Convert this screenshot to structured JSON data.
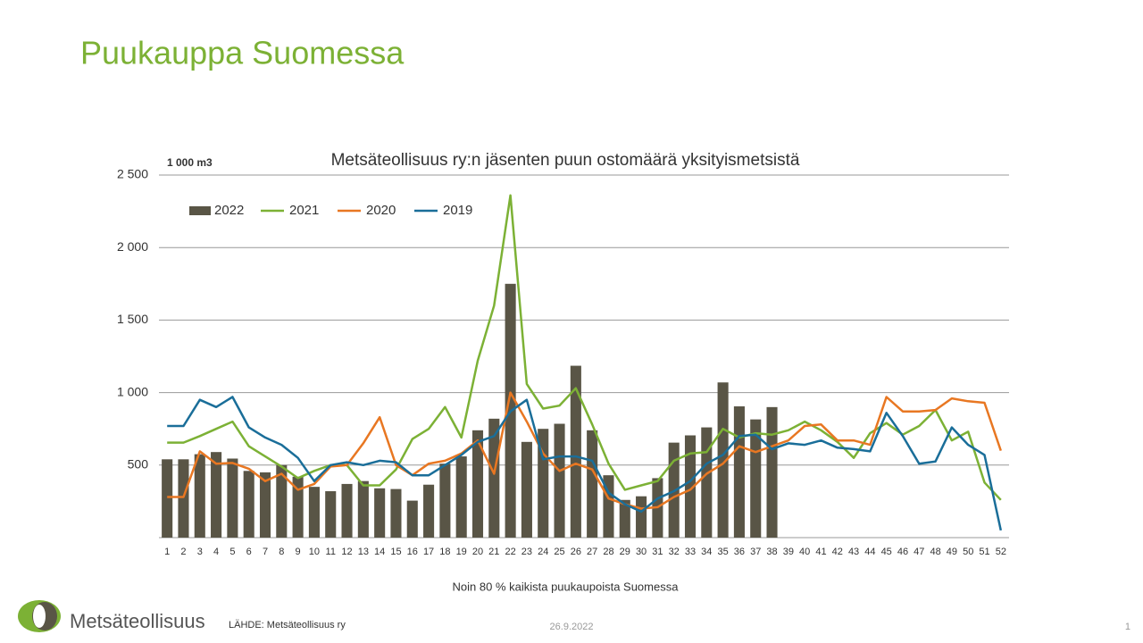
{
  "header": {
    "title": "Puukauppa Suomessa"
  },
  "chart_data": {
    "type": "bar_line",
    "title": "Metsäteollisuus ry:n jäsenten puun ostomäärä yksityismetsistä",
    "unit_label": "1 000 m3",
    "xlabel": "Noin 80 % kaikista puukaupoista Suomessa",
    "categories": [
      "1",
      "2",
      "3",
      "4",
      "5",
      "6",
      "7",
      "8",
      "9",
      "10",
      "11",
      "12",
      "13",
      "14",
      "15",
      "16",
      "17",
      "18",
      "19",
      "20",
      "21",
      "22",
      "23",
      "24",
      "25",
      "26",
      "27",
      "28",
      "29",
      "30",
      "31",
      "32",
      "33",
      "34",
      "35",
      "36",
      "37",
      "38",
      "39",
      "40",
      "41",
      "42",
      "43",
      "44",
      "45",
      "46",
      "47",
      "48",
      "49",
      "50",
      "51",
      "52"
    ],
    "ylim": [
      0,
      2500
    ],
    "yticks": [
      500,
      {
        "value": 1000,
        "label": "1 000"
      },
      {
        "value": 1500,
        "label": "1 500"
      },
      {
        "value": 2000,
        "label": "2 000"
      },
      {
        "value": 2500,
        "label": "2 500"
      }
    ],
    "grid": true,
    "legend": "top-left",
    "series": [
      {
        "name": "2022",
        "kind": "bar",
        "color": "#595546",
        "values": [
          540,
          540,
          575,
          590,
          545,
          460,
          450,
          500,
          420,
          350,
          320,
          370,
          390,
          340,
          335,
          255,
          365,
          510,
          560,
          740,
          820,
          1750,
          660,
          750,
          785,
          1185,
          740,
          430,
          260,
          285,
          410,
          655,
          705,
          760,
          1070,
          905,
          815,
          900,
          null,
          null,
          null,
          null,
          null,
          null,
          null,
          null,
          null,
          null,
          null,
          null,
          null,
          null
        ]
      },
      {
        "name": "2021",
        "kind": "line",
        "color": "#7cb135",
        "values": [
          655,
          655,
          700,
          750,
          800,
          630,
          560,
          490,
          410,
          460,
          500,
          500,
          360,
          360,
          470,
          680,
          750,
          900,
          690,
          1220,
          1600,
          2360,
          1060,
          890,
          910,
          1030,
          780,
          510,
          330,
          360,
          390,
          530,
          580,
          590,
          750,
          690,
          720,
          710,
          740,
          800,
          740,
          660,
          550,
          720,
          790,
          710,
          770,
          880,
          670,
          730,
          380,
          260
        ]
      },
      {
        "name": "2020",
        "kind": "line",
        "color": "#e87722",
        "values": [
          280,
          280,
          595,
          510,
          515,
          475,
          390,
          440,
          330,
          370,
          490,
          500,
          650,
          830,
          500,
          430,
          510,
          530,
          580,
          670,
          440,
          1000,
          800,
          580,
          460,
          510,
          470,
          270,
          230,
          200,
          210,
          280,
          330,
          440,
          510,
          630,
          590,
          630,
          670,
          770,
          780,
          670,
          670,
          640,
          970,
          870,
          870,
          880,
          960,
          940,
          930,
          600
        ]
      },
      {
        "name": "2019",
        "kind": "line",
        "color": "#1a6e99",
        "values": [
          770,
          770,
          950,
          900,
          970,
          760,
          690,
          640,
          550,
          390,
          500,
          520,
          500,
          530,
          520,
          430,
          430,
          500,
          570,
          660,
          700,
          870,
          950,
          540,
          560,
          560,
          530,
          310,
          230,
          180,
          270,
          320,
          390,
          510,
          570,
          700,
          710,
          610,
          650,
          640,
          670,
          620,
          610,
          595,
          860,
          700,
          510,
          525,
          760,
          640,
          570,
          50
        ]
      }
    ]
  },
  "footer": {
    "logo": "Metsäteollisuus",
    "source": "LÄHDE:  Metsäteollisuus ry",
    "date": "26.9.2022",
    "page": "1"
  }
}
